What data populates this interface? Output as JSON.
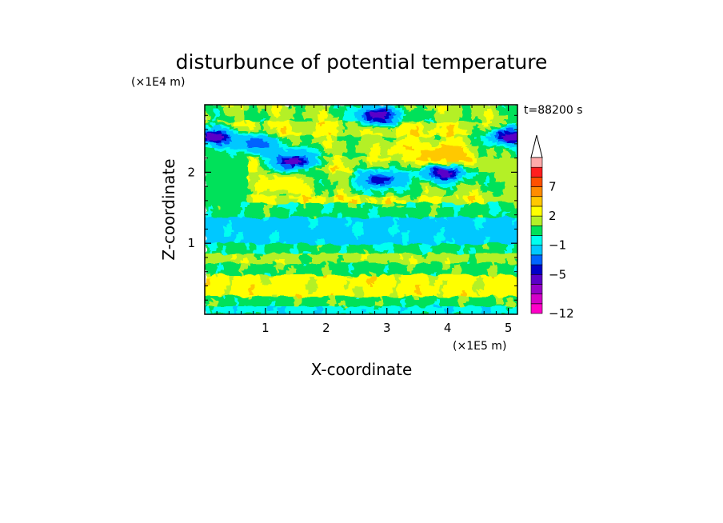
{
  "chart_data": {
    "type": "heatmap",
    "title": "disturbunce of potential temperature",
    "xlabel": "X-coordinate",
    "ylabel": "Z-coordinate",
    "x_unit": "(×1E5 m)",
    "y_unit": "(×1E4 m)",
    "time_label": "t=88200 s",
    "xlim": [
      0,
      5.15
    ],
    "ylim": [
      0,
      2.95
    ],
    "x_ticks": [
      1,
      2,
      3,
      4,
      5
    ],
    "y_ticks": [
      1,
      2
    ],
    "x_tick_labels": [
      "1",
      "2",
      "3",
      "4",
      "5"
    ],
    "y_tick_labels": [
      "1",
      "2"
    ],
    "colorbar": {
      "levels": [
        -12,
        -10,
        -8,
        -6,
        -5,
        -4,
        -3,
        -1,
        0,
        1,
        2,
        3,
        5,
        7,
        9,
        11
      ],
      "labeled_levels": [
        7,
        2,
        -1,
        -5,
        -12
      ],
      "labels": [
        "7",
        "2",
        "−1",
        "−5",
        "−12"
      ],
      "colors": [
        "#ff00c8",
        "#d400c8",
        "#9600c8",
        "#5a00c8",
        "#0000c8",
        "#0064ff",
        "#00c8ff",
        "#00fff0",
        "#00e15a",
        "#b4f028",
        "#ffff00",
        "#ffc800",
        "#ff8c00",
        "#ff5000",
        "#ff1e1e",
        "#ffaaaa"
      ],
      "extend": "max"
    },
    "features": [
      {
        "label": "cold core",
        "x": 0.15,
        "z": 2.5,
        "value": -6
      },
      {
        "label": "cold core",
        "x": 0.85,
        "z": 2.4,
        "value": -4
      },
      {
        "label": "cold core",
        "x": 1.45,
        "z": 2.15,
        "value": -6
      },
      {
        "label": "cold core",
        "x": 2.85,
        "z": 2.8,
        "value": -6
      },
      {
        "label": "cold core",
        "x": 2.9,
        "z": 1.9,
        "value": -5
      },
      {
        "label": "cold core",
        "x": 3.95,
        "z": 2.0,
        "value": -6
      },
      {
        "label": "cold core",
        "x": 5.05,
        "z": 2.5,
        "value": -6
      },
      {
        "label": "warm core",
        "x": 1.3,
        "z": 1.85,
        "value": 3
      },
      {
        "label": "warm core",
        "x": 3.3,
        "z": 2.35,
        "value": 3
      },
      {
        "label": "warm core",
        "x": 4.0,
        "z": 2.25,
        "value": 5
      },
      {
        "label": "cool layer",
        "x": 2.6,
        "z": 1.15,
        "value": -1
      }
    ]
  }
}
